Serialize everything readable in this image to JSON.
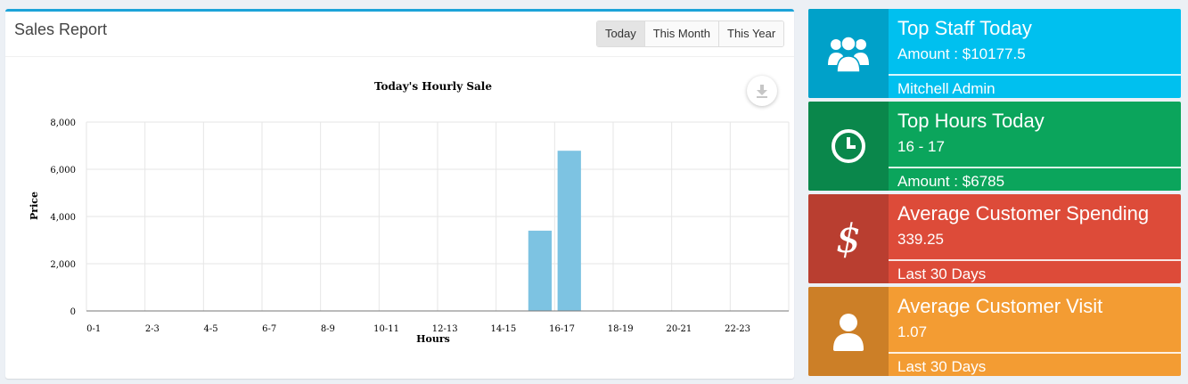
{
  "panel": {
    "title": "Sales Report",
    "filters": [
      "Today",
      "This Month",
      "This Year"
    ],
    "active_filter": "Today"
  },
  "chart_data": {
    "type": "bar",
    "title": "Today's Hourly Sale",
    "xlabel": "Hours",
    "ylabel": "Price",
    "categories": [
      "0-1",
      "2-3",
      "4-5",
      "6-7",
      "8-9",
      "10-11",
      "12-13",
      "14-15",
      "16-17",
      "18-19",
      "20-21",
      "22-23"
    ],
    "bars": [
      {
        "hour": 15,
        "value": 3400
      },
      {
        "hour": 16,
        "value": 6785
      }
    ],
    "ylim": [
      0,
      8000
    ],
    "yticks": [
      "0",
      "2,000",
      "4,000",
      "6,000",
      "8,000"
    ],
    "grid": true,
    "bar_color": "#7dc3e2"
  },
  "cards": [
    {
      "title": "Top Staff Today",
      "line1": "Amount : $10177.5",
      "line2": "Mitchell Admin",
      "icon": "users-icon"
    },
    {
      "title": "Top Hours Today",
      "line1": "16 - 17",
      "line2": "Amount : $6785",
      "icon": "clock-icon"
    },
    {
      "title": "Average Customer Spending",
      "line1": "339.25",
      "line2": "Last 30 Days",
      "icon": "dollar-icon"
    },
    {
      "title": "Average Customer Visit",
      "line1": "1.07",
      "line2": "Last 30 Days",
      "icon": "user-icon"
    }
  ]
}
